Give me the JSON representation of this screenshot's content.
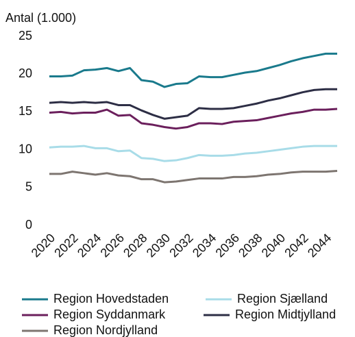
{
  "chart_data": {
    "type": "line",
    "ylabel": "Antal (1.000)",
    "x": [
      2020,
      2021,
      2022,
      2023,
      2024,
      2025,
      2026,
      2027,
      2028,
      2029,
      2030,
      2031,
      2032,
      2033,
      2034,
      2035,
      2036,
      2037,
      2038,
      2039,
      2040,
      2041,
      2042,
      2043,
      2044,
      2045
    ],
    "xlim": [
      2020,
      2045
    ],
    "xticks": [
      2020,
      2022,
      2024,
      2026,
      2028,
      2030,
      2032,
      2034,
      2036,
      2038,
      2040,
      2042,
      2044
    ],
    "ylim": [
      0,
      25
    ],
    "yticks": [
      0,
      5,
      10,
      15,
      20,
      25
    ],
    "grid": false,
    "legend": "bottom",
    "series": [
      {
        "name": "Region Hovedstaden",
        "color": "#1a7a8c",
        "values": [
          19.7,
          19.7,
          19.8,
          20.5,
          20.6,
          20.8,
          20.4,
          20.8,
          19.2,
          19.0,
          18.3,
          18.7,
          18.8,
          19.7,
          19.6,
          19.6,
          19.9,
          20.2,
          20.4,
          20.8,
          21.2,
          21.7,
          22.1,
          22.4,
          22.7,
          22.7
        ]
      },
      {
        "name": "Region Sjælland",
        "color": "#a8dce8",
        "values": [
          10.3,
          10.4,
          10.4,
          10.5,
          10.2,
          10.2,
          9.8,
          9.9,
          8.9,
          8.8,
          8.5,
          8.6,
          8.9,
          9.3,
          9.2,
          9.2,
          9.3,
          9.5,
          9.6,
          9.8,
          10.0,
          10.2,
          10.4,
          10.5,
          10.5,
          10.5
        ]
      },
      {
        "name": "Region Syddanmark",
        "color": "#6b1f5c",
        "values": [
          14.9,
          15.0,
          14.8,
          14.9,
          14.9,
          15.3,
          14.5,
          14.6,
          13.5,
          13.3,
          13.0,
          12.8,
          13.0,
          13.5,
          13.5,
          13.4,
          13.7,
          13.8,
          13.9,
          14.2,
          14.5,
          14.8,
          15.0,
          15.3,
          15.3,
          15.4
        ]
      },
      {
        "name": "Region Midtjylland",
        "color": "#2d2e45",
        "values": [
          16.2,
          16.3,
          16.2,
          16.3,
          16.2,
          16.3,
          15.9,
          15.9,
          15.2,
          14.6,
          14.1,
          14.3,
          14.5,
          15.5,
          15.4,
          15.4,
          15.5,
          15.8,
          16.1,
          16.5,
          16.8,
          17.2,
          17.6,
          17.9,
          18.0,
          18.0
        ]
      },
      {
        "name": "Region Nordjylland",
        "color": "#7d7570",
        "values": [
          6.8,
          6.8,
          7.1,
          6.9,
          6.7,
          6.9,
          6.6,
          6.5,
          6.1,
          6.1,
          5.7,
          5.8,
          6.0,
          6.2,
          6.2,
          6.2,
          6.4,
          6.4,
          6.5,
          6.7,
          6.8,
          7.0,
          7.1,
          7.1,
          7.1,
          7.2
        ]
      }
    ]
  }
}
